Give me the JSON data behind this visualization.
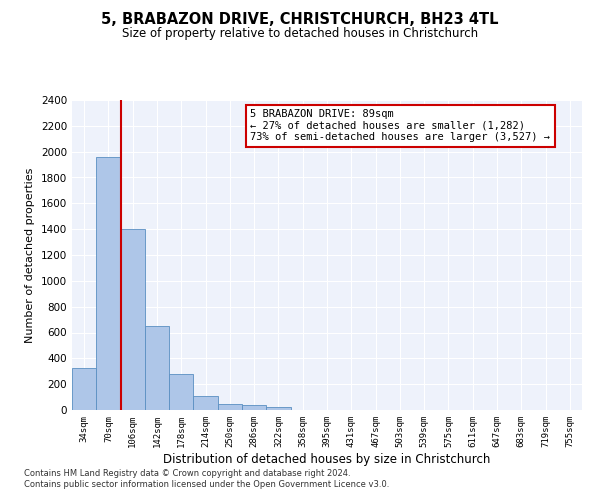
{
  "title": "5, BRABAZON DRIVE, CHRISTCHURCH, BH23 4TL",
  "subtitle": "Size of property relative to detached houses in Christchurch",
  "xlabel": "Distribution of detached houses by size in Christchurch",
  "ylabel": "Number of detached properties",
  "footnote1": "Contains HM Land Registry data © Crown copyright and database right 2024.",
  "footnote2": "Contains public sector information licensed under the Open Government Licence v3.0.",
  "bar_labels": [
    "34sqm",
    "70sqm",
    "106sqm",
    "142sqm",
    "178sqm",
    "214sqm",
    "250sqm",
    "286sqm",
    "322sqm",
    "358sqm",
    "395sqm",
    "431sqm",
    "467sqm",
    "503sqm",
    "539sqm",
    "575sqm",
    "611sqm",
    "647sqm",
    "683sqm",
    "719sqm",
    "755sqm"
  ],
  "bar_values": [
    325,
    1960,
    1400,
    650,
    275,
    105,
    48,
    40,
    25,
    0,
    0,
    0,
    0,
    0,
    0,
    0,
    0,
    0,
    0,
    0,
    0
  ],
  "bar_color": "#aec6e8",
  "bar_edge_color": "#5a8fc2",
  "vline_color": "#cc0000",
  "vline_pos": 1.5,
  "ylim": [
    0,
    2400
  ],
  "yticks": [
    0,
    200,
    400,
    600,
    800,
    1000,
    1200,
    1400,
    1600,
    1800,
    2000,
    2200,
    2400
  ],
  "annotation_text": "5 BRABAZON DRIVE: 89sqm\n← 27% of detached houses are smaller (1,282)\n73% of semi-detached houses are larger (3,527) →",
  "annotation_box_color": "#cc0000",
  "background_color": "#eef2fb",
  "grid_color": "#ffffff",
  "fig_facecolor": "#ffffff"
}
